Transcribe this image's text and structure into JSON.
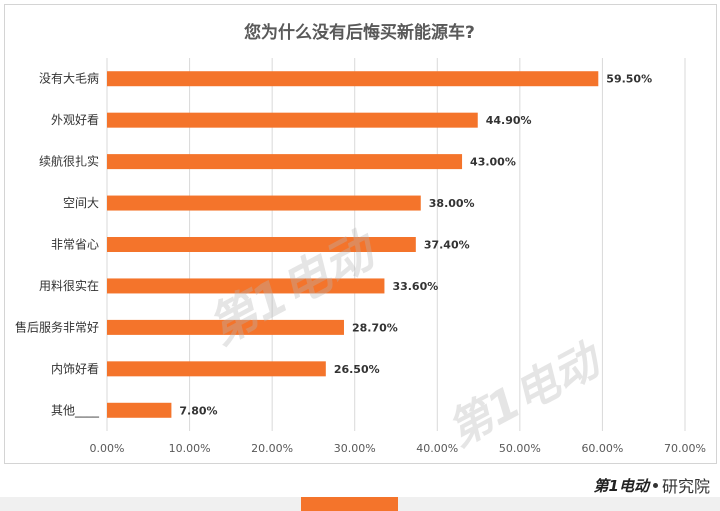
{
  "chart_data": {
    "type": "bar",
    "orientation": "horizontal",
    "title": "您为什么没有后悔买新能源车?",
    "categories": [
      "没有大毛病",
      "外观好看",
      "续航很扎实",
      "空间大",
      "非常省心",
      "用料很实在",
      "售后服务非常好",
      "内饰好看",
      "其他____"
    ],
    "values": [
      59.5,
      44.9,
      43.0,
      38.0,
      37.4,
      33.6,
      28.7,
      26.5,
      7.8
    ],
    "value_labels": [
      "59.50%",
      "44.90%",
      "43.00%",
      "38.00%",
      "37.40%",
      "33.60%",
      "28.70%",
      "26.50%",
      "7.80%"
    ],
    "xlim": [
      0,
      70
    ],
    "x_ticks": [
      "0.00%",
      "10.00%",
      "20.00%",
      "30.00%",
      "40.00%",
      "50.00%",
      "60.00%",
      "70.00%"
    ],
    "grid": true,
    "bar_color": "#f4742b"
  },
  "watermark": {
    "text": "第1电动"
  },
  "brand": {
    "logo": "第1电动",
    "suffix": "研究院"
  }
}
